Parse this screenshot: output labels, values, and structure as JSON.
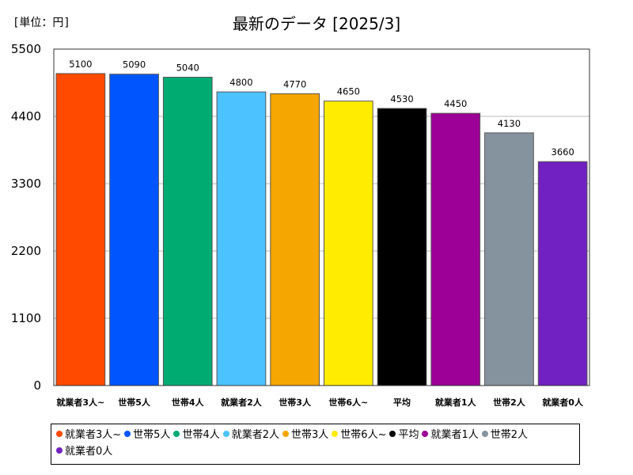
{
  "unit_label": "[単位：円]",
  "chart_data": {
    "type": "bar",
    "title": "最新のデータ [2025/3]",
    "xlabel": "",
    "ylabel": "",
    "ylim": [
      0,
      5500
    ],
    "yticks": [
      "0",
      "1100",
      "2200",
      "3300",
      "4400",
      "5500"
    ],
    "grid": true,
    "legend_position": "bottom",
    "categories": [
      "就業者3人~",
      "世帯5人",
      "世帯4人",
      "就業者2人",
      "世帯3人",
      "世帯6人~",
      "平均",
      "就業者1人",
      "世帯2人",
      "就業者0人"
    ],
    "values": [
      5100,
      5090,
      5040,
      4800,
      4770,
      4650,
      4530,
      4450,
      4130,
      3660
    ],
    "colors": [
      "#ff4a00",
      "#0055ff",
      "#00ab72",
      "#4cc3ff",
      "#f5a600",
      "#ffec00",
      "#000000",
      "#9c0096",
      "#84939e",
      "#7121c1"
    ]
  }
}
